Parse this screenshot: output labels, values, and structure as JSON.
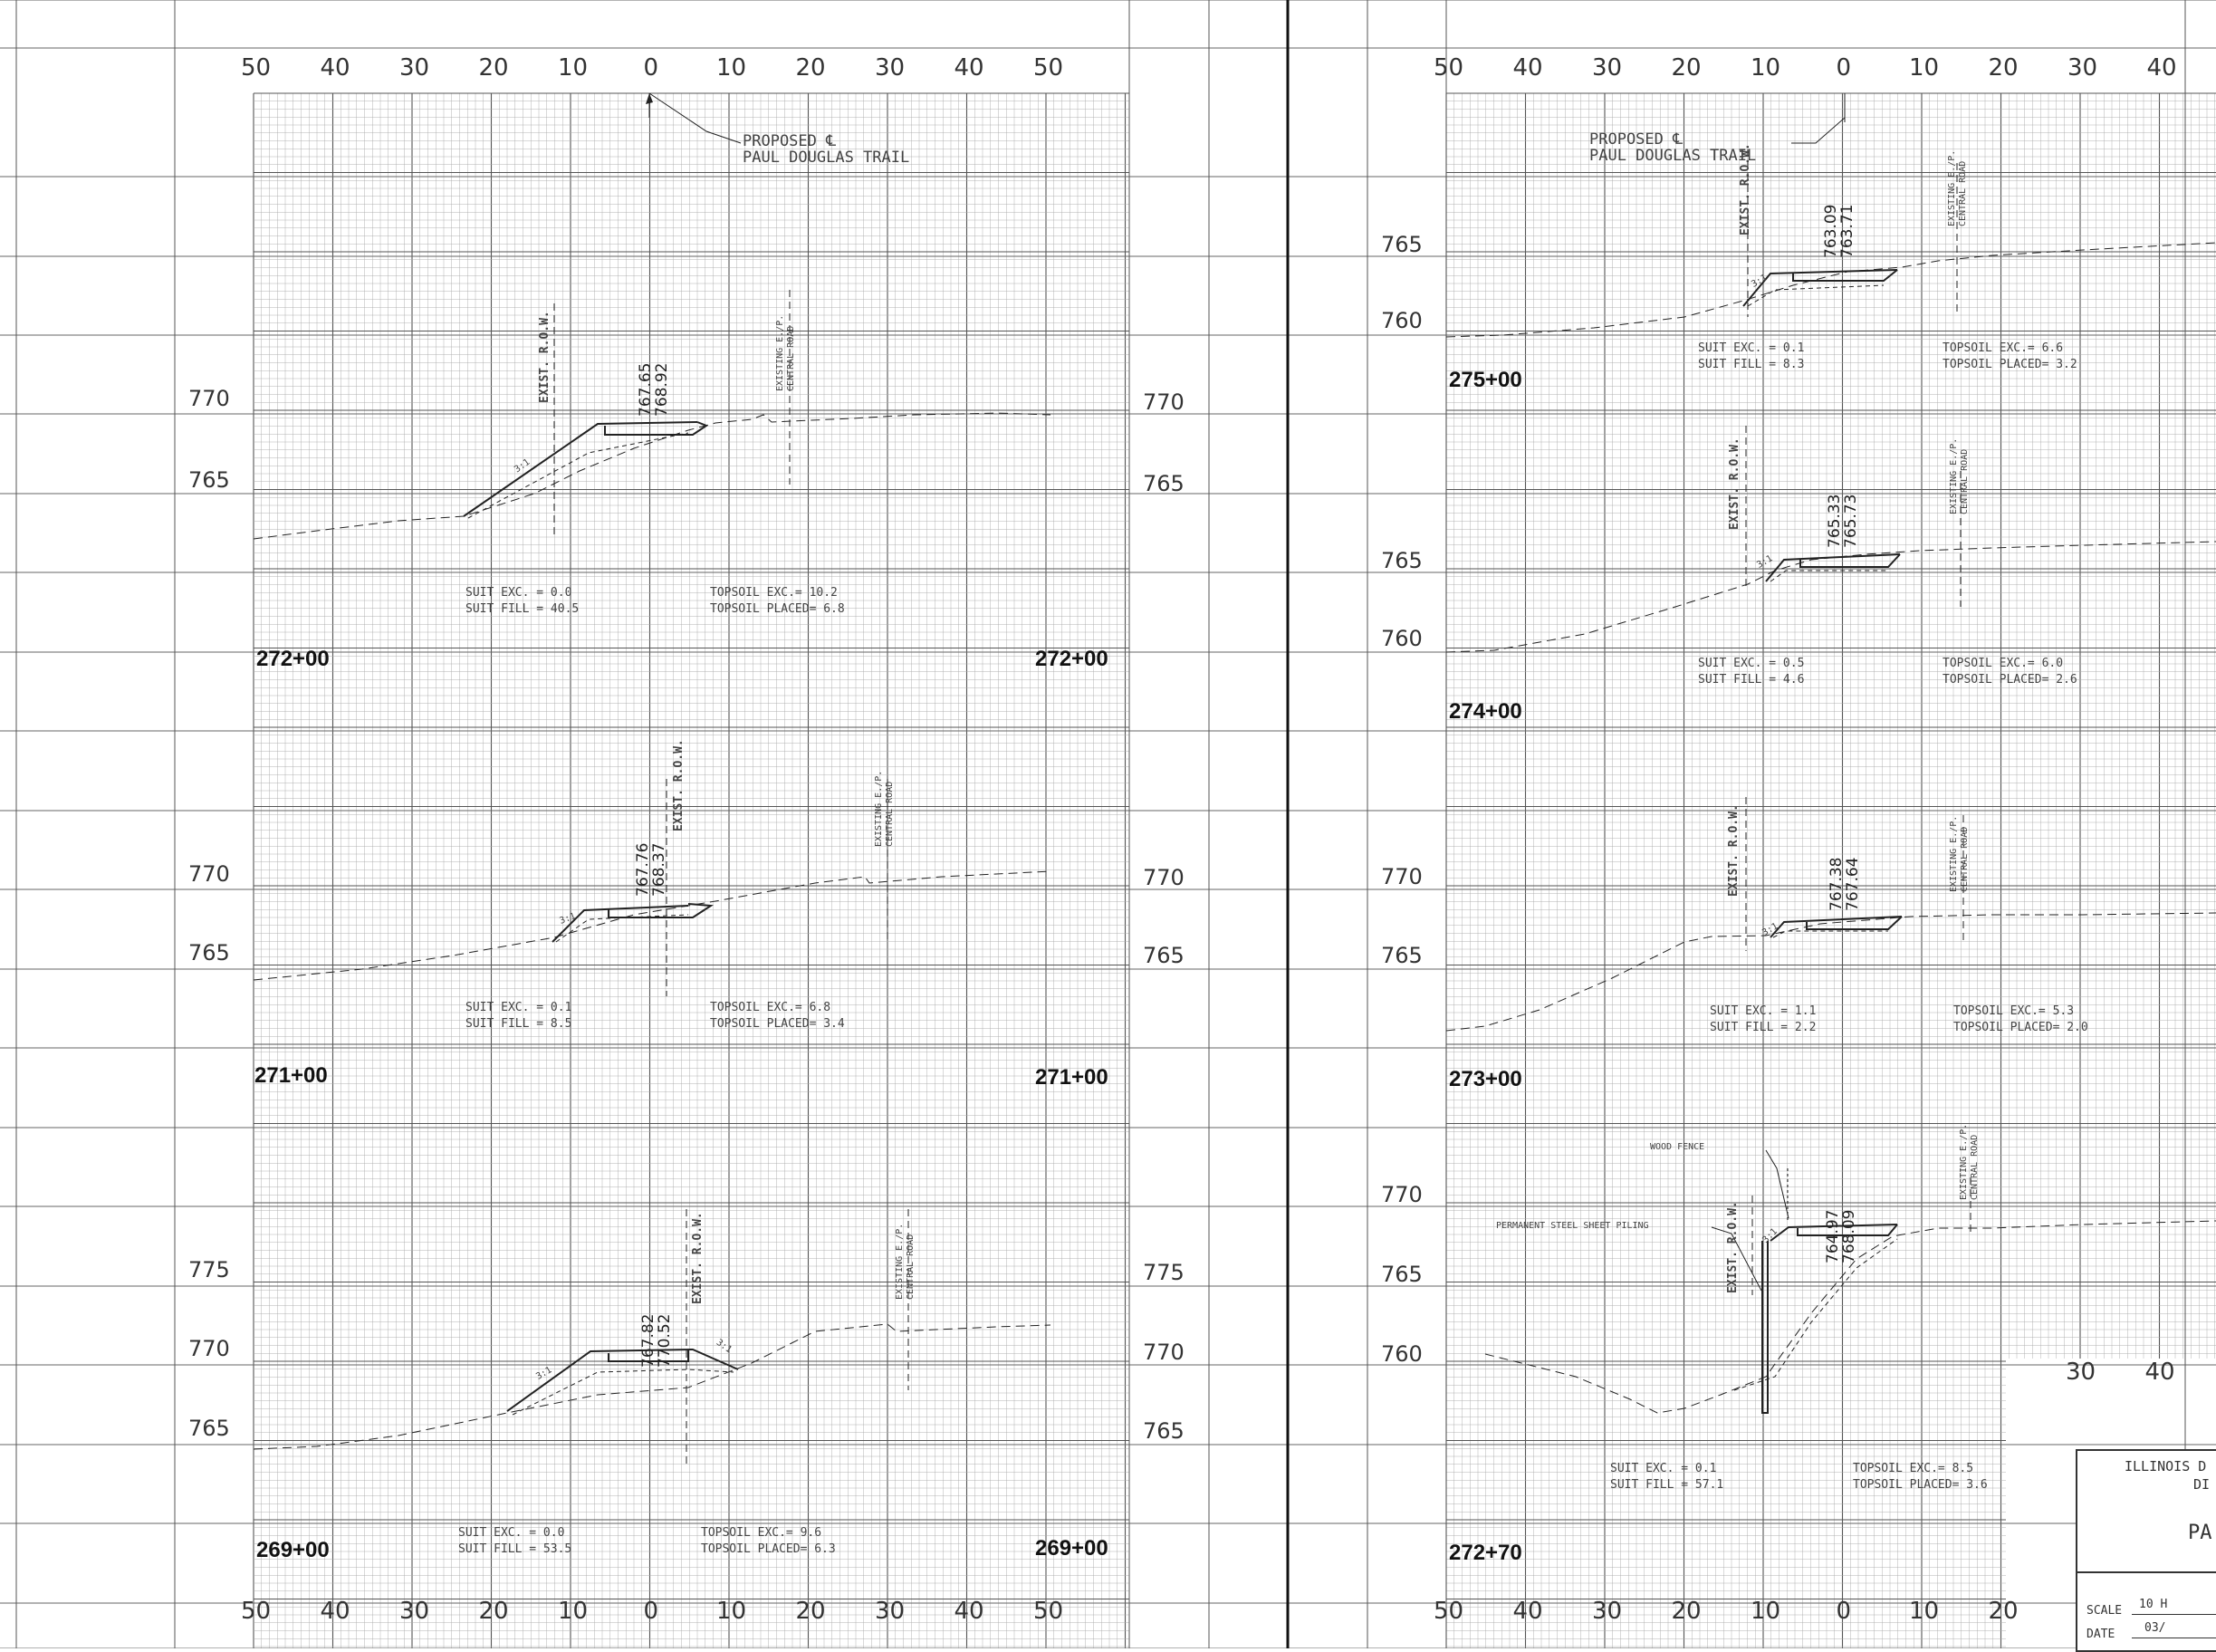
{
  "left_sheet": {
    "offset_labels_top": [
      "50",
      "40",
      "30",
      "20",
      "10",
      "0",
      "10",
      "20",
      "30",
      "40",
      "50"
    ],
    "offset_labels_bottom": [
      "50",
      "40",
      "30",
      "20",
      "10",
      "0",
      "10",
      "20",
      "30",
      "40",
      "50"
    ],
    "centerline_label": "PROPOSED ℄\nPAUL DOUGLAS TRAIL",
    "sections": [
      {
        "station": "272+00",
        "elev_left": [
          "770",
          "765"
        ],
        "elev_right": [
          "770",
          "765"
        ],
        "row_label": "EXIST. R.O.W.",
        "edge_label": "EXISTING E./P.\nCENTRAL ROAD",
        "prop_elev": "767.65\n768.92",
        "slope": "3:1",
        "suit": "SUIT EXC. = 0.0\nSUIT FILL = 40.5",
        "topsoil": "TOPSOIL EXC.= 10.2\nTOPSOIL PLACED= 6.8"
      },
      {
        "station": "271+00",
        "elev_left": [
          "770",
          "765"
        ],
        "elev_right": [
          "770",
          "765"
        ],
        "row_label": "EXIST. R.O.W.",
        "edge_label": "EXISTING E./P.\nCENTRAL ROAD",
        "prop_elev": "767.76\n768.37",
        "slope": "3:1",
        "suit": "SUIT EXC. = 0.1\nSUIT FILL = 8.5",
        "topsoil": "TOPSOIL EXC.= 6.8\nTOPSOIL PLACED= 3.4"
      },
      {
        "station": "269+00",
        "elev_left": [
          "775",
          "770",
          "765"
        ],
        "elev_right": [
          "775",
          "770",
          "765"
        ],
        "row_label": "EXIST. R.O.W.",
        "edge_label": "EXISTING E./P.\nCENTRAL ROAD",
        "prop_elev": "767.82\n770.52",
        "slope": "3:1",
        "slope_right": "3:1",
        "suit": "SUIT EXC. = 0.0\nSUIT FILL = 53.5",
        "topsoil": "TOPSOIL EXC.= 9.6\nTOPSOIL PLACED= 6.3"
      }
    ]
  },
  "right_sheet": {
    "offset_labels_top": [
      "50",
      "40",
      "30",
      "20",
      "10",
      "0",
      "10",
      "20",
      "30",
      "40"
    ],
    "offset_labels_bottom": [
      "50",
      "40",
      "30",
      "20",
      "10",
      "0",
      "10",
      "20"
    ],
    "offset_labels_mid": [
      "30",
      "40"
    ],
    "centerline_label": "PROPOSED ℄\nPAUL DOUGLAS TRAIL",
    "sections": [
      {
        "station": "275+00",
        "elev": [
          "765",
          "760"
        ],
        "row_label": "EXIST. R.O.W.",
        "edge_label": "EXISTING E./P.\nCENTRAL ROAD",
        "prop_elev": "763.09\n763.71",
        "slope": "3:1",
        "suit": "SUIT EXC. = 0.1\nSUIT FILL = 8.3",
        "topsoil": "TOPSOIL EXC.= 6.6\nTOPSOIL PLACED= 3.2"
      },
      {
        "station": "274+00",
        "elev": [
          "765",
          "760"
        ],
        "row_label": "EXIST. R.O.W.",
        "edge_label": "EXISTING E./P.\nCENTRAL ROAD",
        "prop_elev": "765.33\n765.73",
        "slope": "3:1",
        "suit": "SUIT EXC. = 0.5\nSUIT FILL = 4.6",
        "topsoil": "TOPSOIL EXC.= 6.0\nTOPSOIL PLACED= 2.6"
      },
      {
        "station": "273+00",
        "elev": [
          "770",
          "765"
        ],
        "row_label": "EXIST. R.O.W.",
        "edge_label": "EXISTING E./P.\nCENTRAL ROAD",
        "prop_elev": "767.38\n767.64",
        "slope": "3:1",
        "suit": "SUIT EXC. = 1.1\nSUIT FILL = 2.2",
        "topsoil": "TOPSOIL EXC.= 5.3\nTOPSOIL PLACED= 2.0"
      },
      {
        "station": "272+70",
        "elev": [
          "770",
          "765",
          "760"
        ],
        "row_label": "EXIST. R.O.W.",
        "edge_label": "EXISTING E./P.\nCENTRAL ROAD",
        "prop_elev": "764.97\n768.09",
        "slope": "3:1",
        "fence_label": "WOOD FENCE",
        "piling_label": "PERMANENT STEEL SHEET PILING",
        "suit": "SUIT EXC. = 0.1\nSUIT FILL = 57.1",
        "topsoil": "TOPSOIL EXC.= 8.5\nTOPSOIL PLACED= 3.6"
      }
    ]
  },
  "title_block": {
    "line1": "ILLINOIS D",
    "line2": "DI",
    "title": "PA",
    "scale_label": "SCALE",
    "scale_value": "10 H",
    "date_label": "DATE",
    "date_value": "03/"
  }
}
